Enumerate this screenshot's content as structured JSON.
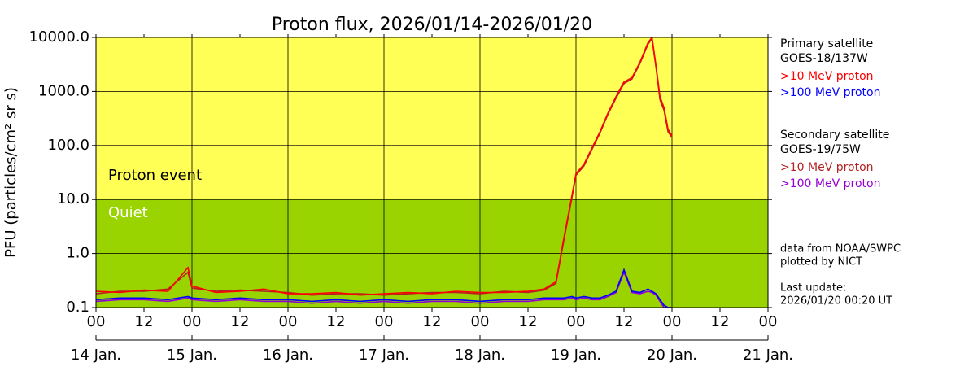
{
  "chart_data": {
    "type": "line",
    "title": "Proton flux, 2026/01/14-2026/01/20",
    "y_label": "PFU (particles/cm² sr s)",
    "log_y": true,
    "ylim": [
      0.1,
      10000
    ],
    "yticks": [
      {
        "value": 0.1,
        "label": "0.1"
      },
      {
        "value": 1,
        "label": "1.0"
      },
      {
        "value": 10,
        "label": "10.0"
      },
      {
        "value": 100,
        "label": "100.0"
      },
      {
        "value": 1000,
        "label": "1000.0"
      },
      {
        "value": 10000,
        "label": "10000.0"
      }
    ],
    "xlim": [
      0,
      168
    ],
    "xticks": [
      {
        "value": 0,
        "label": "00"
      },
      {
        "value": 12,
        "label": "12"
      },
      {
        "value": 24,
        "label": "00"
      },
      {
        "value": 36,
        "label": "12"
      },
      {
        "value": 48,
        "label": "00"
      },
      {
        "value": 60,
        "label": "12"
      },
      {
        "value": 72,
        "label": "00"
      },
      {
        "value": 84,
        "label": "12"
      },
      {
        "value": 96,
        "label": "00"
      },
      {
        "value": 108,
        "label": "12"
      },
      {
        "value": 120,
        "label": "00"
      },
      {
        "value": 132,
        "label": "12"
      },
      {
        "value": 144,
        "label": "00"
      },
      {
        "value": 156,
        "label": "12"
      },
      {
        "value": 168,
        "label": "00"
      }
    ],
    "day_ticks": [
      {
        "value": 0,
        "label": "14 Jan."
      },
      {
        "value": 24,
        "label": "15 Jan."
      },
      {
        "value": 48,
        "label": "16 Jan."
      },
      {
        "value": 72,
        "label": "17 Jan."
      },
      {
        "value": 96,
        "label": "18 Jan."
      },
      {
        "value": 120,
        "label": "19 Jan."
      },
      {
        "value": 144,
        "label": "20 Jan."
      },
      {
        "value": 168,
        "label": "21 Jan."
      }
    ],
    "grid": true,
    "event_threshold": 10,
    "event_color": "#ffff55",
    "quiet_color": "#99d400",
    "annotations": [
      "Proton event",
      "Quiet"
    ],
    "legend_groups": [
      {
        "title": "Primary satellite",
        "satellite": "GOES-18/137W"
      },
      {
        "title": "Secondary satellite",
        "satellite": "GOES-19/75W"
      }
    ],
    "notes": [
      "data from NOAA/SWPC",
      "plotted by NICT",
      "Last update:",
      "2026/01/20 00:20 UT"
    ],
    "x": [
      0,
      6,
      12,
      18,
      23,
      24,
      30,
      36,
      42,
      48,
      54,
      60,
      66,
      72,
      78,
      84,
      90,
      96,
      102,
      108,
      112,
      115,
      117,
      119,
      120,
      122,
      124,
      126,
      128,
      130,
      132,
      134,
      136,
      138,
      139,
      140,
      141,
      142,
      143,
      144
    ],
    "series": [
      {
        "name": ">10 MeV proton",
        "color": "#ff0000",
        "values": [
          0.2,
          0.19,
          0.21,
          0.2,
          0.55,
          0.25,
          0.19,
          0.2,
          0.22,
          0.18,
          0.18,
          0.19,
          0.17,
          0.18,
          0.19,
          0.18,
          0.2,
          0.19,
          0.19,
          0.2,
          0.22,
          0.3,
          2,
          12,
          30,
          45,
          90,
          180,
          400,
          800,
          1500,
          1800,
          3500,
          8000,
          10000,
          3000,
          800,
          500,
          200,
          150
        ]
      },
      {
        "name": ">100 MeV proton",
        "color": "#0000ff",
        "values": [
          0.14,
          0.15,
          0.15,
          0.14,
          0.16,
          0.15,
          0.14,
          0.15,
          0.14,
          0.14,
          0.13,
          0.14,
          0.13,
          0.14,
          0.13,
          0.14,
          0.14,
          0.13,
          0.14,
          0.14,
          0.15,
          0.15,
          0.15,
          0.16,
          0.15,
          0.16,
          0.15,
          0.15,
          0.17,
          0.2,
          0.5,
          0.2,
          0.19,
          0.22,
          0.2,
          0.18,
          0.14,
          0.11,
          0.1,
          0.1
        ]
      },
      {
        "name": ">10 MeV proton",
        "color": "#b22222",
        "values": [
          0.18,
          0.2,
          0.2,
          0.22,
          0.45,
          0.23,
          0.2,
          0.21,
          0.2,
          0.19,
          0.17,
          0.18,
          0.18,
          0.17,
          0.18,
          0.19,
          0.19,
          0.18,
          0.2,
          0.19,
          0.21,
          0.28,
          1.8,
          11,
          28,
          42,
          85,
          170,
          380,
          750,
          1400,
          1700,
          3300,
          7500,
          9500,
          2800,
          700,
          450,
          180,
          140
        ]
      },
      {
        "name": ">100 MeV proton",
        "color": "#9400d3",
        "values": [
          0.13,
          0.14,
          0.14,
          0.13,
          0.15,
          0.14,
          0.13,
          0.14,
          0.13,
          0.13,
          0.12,
          0.13,
          0.12,
          0.13,
          0.12,
          0.13,
          0.13,
          0.12,
          0.13,
          0.13,
          0.14,
          0.14,
          0.14,
          0.15,
          0.14,
          0.15,
          0.14,
          0.14,
          0.16,
          0.19,
          0.45,
          0.19,
          0.18,
          0.2,
          0.19,
          0.17,
          0.13,
          0.1,
          0.1,
          0.1
        ]
      }
    ]
  }
}
